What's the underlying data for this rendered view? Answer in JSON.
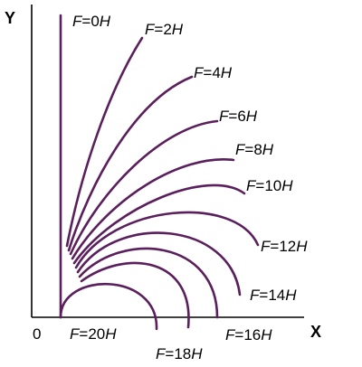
{
  "chart_data": {
    "type": "line",
    "title": "",
    "xlabel": "X",
    "ylabel": "Y",
    "origin_label": "0",
    "curve_color": "#5a1f5c",
    "series": [
      {
        "name": "F=0H",
        "label_prefix": "F=",
        "label_value": "0",
        "label_suffix": "H"
      },
      {
        "name": "F=2H",
        "label_prefix": "F=",
        "label_value": "2",
        "label_suffix": "H"
      },
      {
        "name": "F=4H",
        "label_prefix": "F=",
        "label_value": "4",
        "label_suffix": "H"
      },
      {
        "name": "F=6H",
        "label_prefix": "F=",
        "label_value": "6",
        "label_suffix": "H"
      },
      {
        "name": "F=8H",
        "label_prefix": "F=",
        "label_value": "8",
        "label_suffix": "H"
      },
      {
        "name": "F=10H",
        "label_prefix": "F=",
        "label_value": "10",
        "label_suffix": "H"
      },
      {
        "name": "F=12H",
        "label_prefix": "F=",
        "label_value": "12",
        "label_suffix": "H"
      },
      {
        "name": "F=14H",
        "label_prefix": "F=",
        "label_value": "14",
        "label_suffix": "H"
      },
      {
        "name": "F=16H",
        "label_prefix": "F=",
        "label_value": "16",
        "label_suffix": "H"
      },
      {
        "name": "F=18H",
        "label_prefix": "F=",
        "label_value": "18",
        "label_suffix": "H"
      },
      {
        "name": "F=20H",
        "label_prefix": "F=",
        "label_value": "20",
        "label_suffix": "H"
      }
    ]
  }
}
